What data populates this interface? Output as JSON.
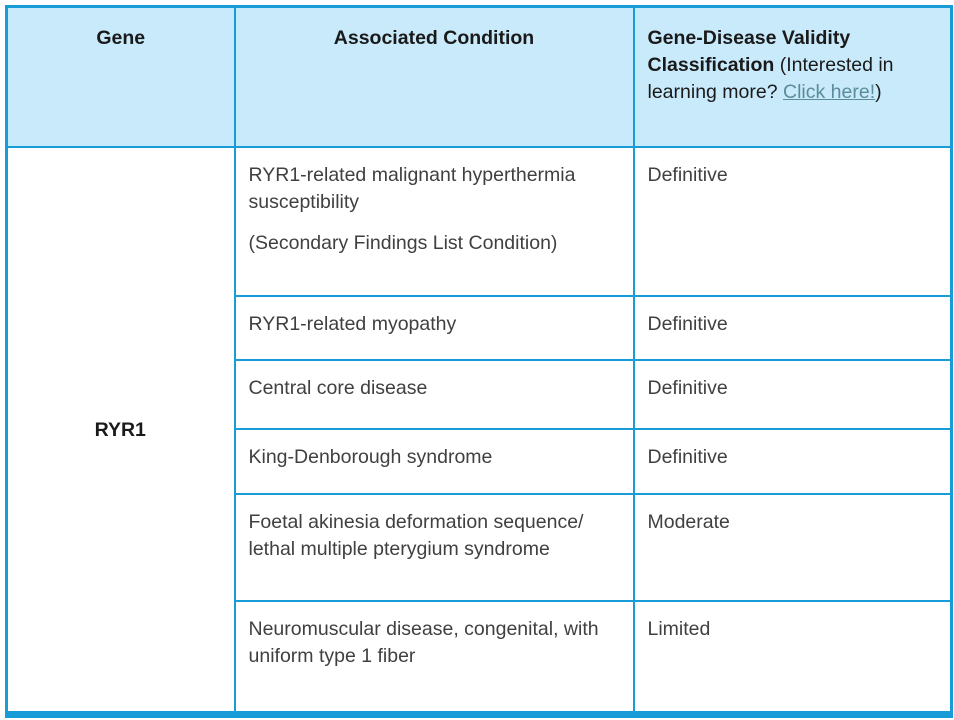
{
  "colors": {
    "table_border": "#189CD7",
    "header_background": "#C9EAFB",
    "header_text": "#1A1A1A",
    "body_text": "#404040",
    "link_text": "#5A8C9A"
  },
  "table": {
    "header": {
      "gene": "Gene",
      "condition": "Associated Condition",
      "classification_bold": "Gene-Disease Validity Classification",
      "classification_text": " (Interested in learning more? ",
      "classification_link": "Click here!",
      "classification_close": ")"
    },
    "gene": "RYR1",
    "rows": [
      {
        "condition": "RYR1-related malignant hyperthermia susceptibility",
        "condition_note": "(Secondary Findings List Condition)",
        "classification": "Definitive"
      },
      {
        "condition": "RYR1-related myopathy",
        "classification": "Definitive"
      },
      {
        "condition": "Central core disease",
        "classification": "Definitive"
      },
      {
        "condition": "King-Denborough syndrome",
        "classification": "Definitive"
      },
      {
        "condition": "Foetal akinesia deformation sequence/ lethal multiple pterygium syndrome",
        "classification": "Moderate"
      },
      {
        "condition": "Neuromuscular disease, congenital, with uniform type 1 fiber",
        "classification": "Limited"
      }
    ]
  }
}
